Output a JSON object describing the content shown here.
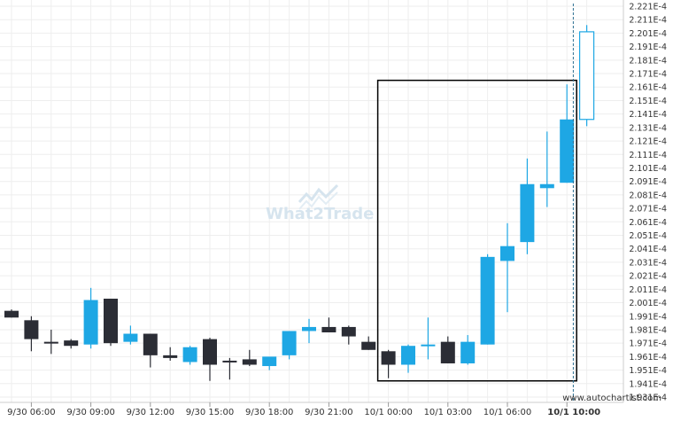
{
  "watermark": {
    "text": "What2Trade",
    "icon": "chart-arrow-logo"
  },
  "credit": "www.autochartist.com",
  "colors": {
    "bull": "#1ea7e4",
    "bear": "#2b2d35",
    "box": "#000000",
    "grid": "#eeeeee",
    "current_line": "#2b6f91"
  },
  "chart_data": {
    "type": "candlestick",
    "title": "",
    "xlabel": "",
    "ylabel": "",
    "ylim": [
      0.0001929,
      0.0002224
    ],
    "y_tick_labels": [
      "1.931E-4",
      "1.941E-4",
      "1.951E-4",
      "1.961E-4",
      "1.971E-4",
      "1.981E-4",
      "1.991E-4",
      "2.001E-4",
      "2.011E-4",
      "2.021E-4",
      "2.031E-4",
      "2.041E-4",
      "2.051E-4",
      "2.061E-4",
      "2.071E-4",
      "2.081E-4",
      "2.091E-4",
      "2.101E-4",
      "2.111E-4",
      "2.121E-4",
      "2.131E-4",
      "2.141E-4",
      "2.151E-4",
      "2.161E-4",
      "2.171E-4",
      "2.181E-4",
      "2.191E-4",
      "2.201E-4",
      "2.211E-4",
      "2.221E-4"
    ],
    "x_tick_labels": [
      {
        "label": "9/30 06:00",
        "index": 1,
        "bold": false
      },
      {
        "label": "9/30 09:00",
        "index": 4,
        "bold": false
      },
      {
        "label": "9/30 12:00",
        "index": 7,
        "bold": false
      },
      {
        "label": "9/30 15:00",
        "index": 10,
        "bold": false
      },
      {
        "label": "9/30 18:00",
        "index": 13,
        "bold": false
      },
      {
        "label": "9/30 21:00",
        "index": 16,
        "bold": false
      },
      {
        "label": "10/1 00:00",
        "index": 19,
        "bold": false
      },
      {
        "label": "10/1 03:00",
        "index": 22,
        "bold": false
      },
      {
        "label": "10/1 06:00",
        "index": 25,
        "bold": false
      },
      {
        "label": "10/1 10:00",
        "index": 28,
        "bold": true
      }
    ],
    "candles": [
      {
        "open": 0.0001995,
        "high": 0.0001996,
        "low": 0.000199,
        "close": 0.000199
      },
      {
        "open": 0.0001988,
        "high": 0.0001991,
        "low": 0.0001965,
        "close": 0.0001974
      },
      {
        "open": 0.0001972,
        "high": 0.0001981,
        "low": 0.0001963,
        "close": 0.0001971
      },
      {
        "open": 0.0001973,
        "high": 0.0001974,
        "low": 0.0001967,
        "close": 0.0001969
      },
      {
        "open": 0.000197,
        "high": 0.0002012,
        "low": 0.0001967,
        "close": 0.0002003
      },
      {
        "open": 0.0002004,
        "high": 0.0002004,
        "low": 0.0001969,
        "close": 0.0001971
      },
      {
        "open": 0.0001972,
        "high": 0.0001984,
        "low": 0.000197,
        "close": 0.0001978
      },
      {
        "open": 0.0001978,
        "high": 0.0001978,
        "low": 0.0001953,
        "close": 0.0001962
      },
      {
        "open": 0.0001962,
        "high": 0.0001968,
        "low": 0.0001958,
        "close": 0.000196
      },
      {
        "open": 0.0001957,
        "high": 0.0001969,
        "low": 0.0001955,
        "close": 0.0001968
      },
      {
        "open": 0.0001974,
        "high": 0.0001975,
        "low": 0.0001943,
        "close": 0.0001955
      },
      {
        "open": 0.0001958,
        "high": 0.000196,
        "low": 0.0001944,
        "close": 0.0001957
      },
      {
        "open": 0.0001959,
        "high": 0.0001966,
        "low": 0.0001954,
        "close": 0.0001955
      },
      {
        "open": 0.0001954,
        "high": 0.000196,
        "low": 0.0001951,
        "close": 0.0001961
      },
      {
        "open": 0.0001962,
        "high": 0.000198,
        "low": 0.0001959,
        "close": 0.000198
      },
      {
        "open": 0.000198,
        "high": 0.0001989,
        "low": 0.0001971,
        "close": 0.0001983
      },
      {
        "open": 0.0001983,
        "high": 0.000199,
        "low": 0.0001979,
        "close": 0.0001979
      },
      {
        "open": 0.0001983,
        "high": 0.0001984,
        "low": 0.000197,
        "close": 0.0001976
      },
      {
        "open": 0.0001972,
        "high": 0.0001976,
        "low": 0.0001966,
        "close": 0.0001966
      },
      {
        "open": 0.0001965,
        "high": 0.0001966,
        "low": 0.0001945,
        "close": 0.0001955
      },
      {
        "open": 0.0001955,
        "high": 0.000197,
        "low": 0.0001949,
        "close": 0.0001969
      },
      {
        "open": 0.0001969,
        "high": 0.000199,
        "low": 0.0001959,
        "close": 0.000197
      },
      {
        "open": 0.0001972,
        "high": 0.0001976,
        "low": 0.0001956,
        "close": 0.0001956
      },
      {
        "open": 0.0001956,
        "high": 0.0001977,
        "low": 0.0001955,
        "close": 0.0001972
      },
      {
        "open": 0.000197,
        "high": 0.0002037,
        "low": 0.000197,
        "close": 0.0002035
      },
      {
        "open": 0.0002032,
        "high": 0.000206,
        "low": 0.0001994,
        "close": 0.0002043
      },
      {
        "open": 0.0002046,
        "high": 0.0002108,
        "low": 0.0002037,
        "close": 0.0002089
      },
      {
        "open": 0.0002086,
        "high": 0.0002128,
        "low": 0.0002072,
        "close": 0.0002089
      },
      {
        "open": 0.000209,
        "high": 0.0002163,
        "low": 0.000209,
        "close": 0.0002137
      },
      {
        "open": 0.0002137,
        "high": 0.0002207,
        "low": 0.0002132,
        "close": 0.0002202
      }
    ],
    "pattern_box": {
      "from_index": 19,
      "to_index": 28,
      "low": 0.0001943,
      "high": 0.0002166
    },
    "current_time_index": 28.5,
    "grid": true
  }
}
